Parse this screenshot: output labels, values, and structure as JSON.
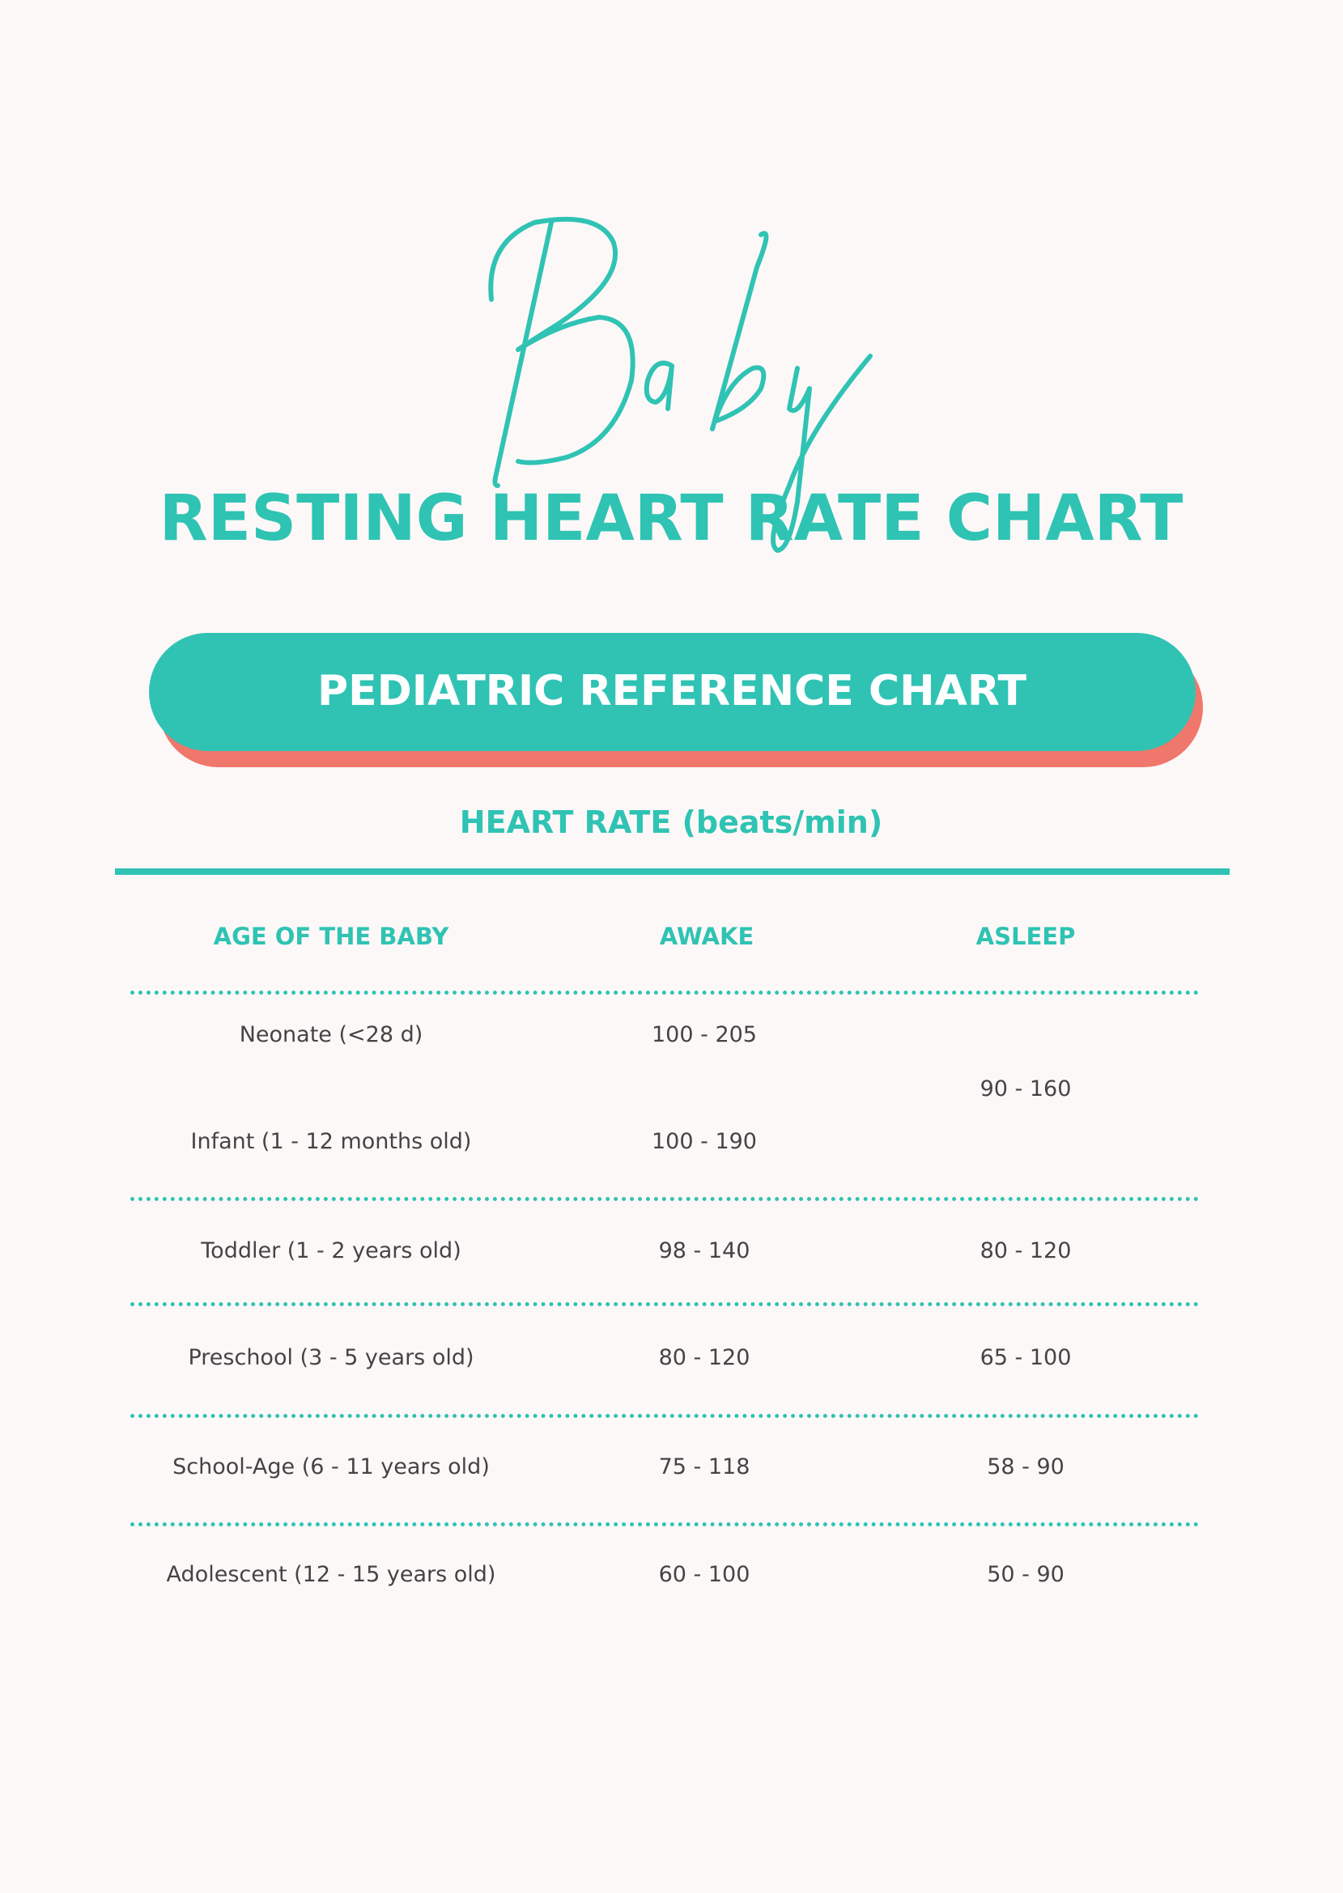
{
  "header": {
    "script_word": "Baby",
    "title": "RESTING HEART RATE CHART"
  },
  "banner": {
    "label": "PEDIATRIC REFERENCE CHART"
  },
  "table": {
    "caption": "HEART RATE (beats/min)",
    "columns": [
      "AGE OF THE BABY",
      "AWAKE",
      "ASLEEP"
    ],
    "rows": [
      {
        "age": "Neonate (<28 d)",
        "awake": "100 - 205"
      },
      {
        "asleep_shared": "90 - 160"
      },
      {
        "age": "Infant (1 - 12 months old)",
        "awake": "100 - 190"
      },
      {
        "age": "Toddler (1 - 2 years old)",
        "awake": "98 - 140",
        "asleep": "80 - 120"
      },
      {
        "age": "Preschool (3 - 5 years old)",
        "awake": "80 - 120",
        "asleep": "65 - 100"
      },
      {
        "age": "School-Age (6 - 11 years old)",
        "awake": "75 - 118",
        "asleep": "58 - 90"
      },
      {
        "age": "Adolescent (12 - 15 years old)",
        "awake": "60 - 100",
        "asleep": "50 - 90"
      }
    ]
  },
  "colors": {
    "teal": "#30c3b4",
    "coral": "#ef776b",
    "background": "#fdf8f8",
    "text": "#444444"
  }
}
